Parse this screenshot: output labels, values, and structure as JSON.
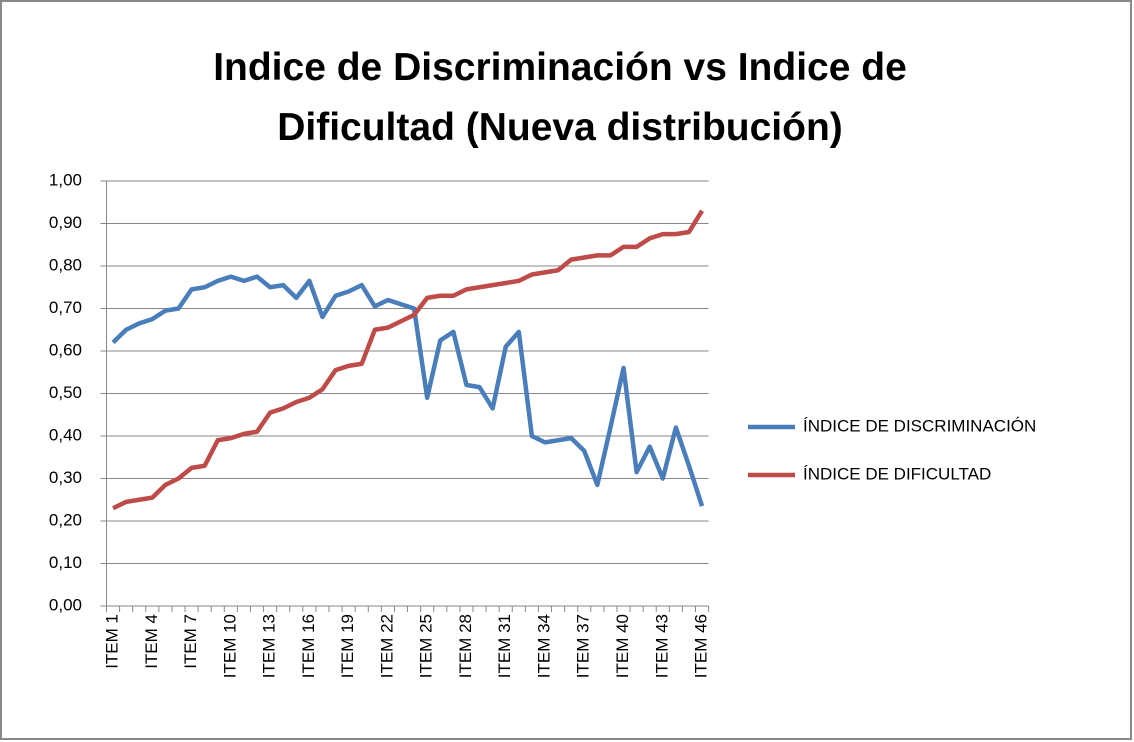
{
  "chart_data": {
    "type": "line",
    "title": "Indice de Discriminación vs Indice de Dificultad (Nueva distribución)",
    "categories": [
      "ITEM 1",
      null,
      null,
      "ITEM 4",
      null,
      null,
      "ITEM 7",
      null,
      null,
      "ITEM 10",
      null,
      null,
      "ITEM 13",
      null,
      null,
      "ITEM 16",
      null,
      null,
      "ITEM 19",
      null,
      null,
      "ITEM 22",
      null,
      null,
      "ITEM 25",
      null,
      null,
      "ITEM 28",
      null,
      null,
      "ITEM 31",
      null,
      null,
      "ITEM 34",
      null,
      null,
      "ITEM 37",
      null,
      null,
      "ITEM 40",
      null,
      null,
      "ITEM 43",
      null,
      null,
      "ITEM 46"
    ],
    "series": [
      {
        "name": "ÍNDICE DE DISCRIMINACIÓN",
        "color": "#4a7ebb",
        "values": [
          0.62,
          0.65,
          0.665,
          0.675,
          0.695,
          0.7,
          0.745,
          0.75,
          0.765,
          0.775,
          0.765,
          0.775,
          0.75,
          0.755,
          0.725,
          0.765,
          0.68,
          0.73,
          0.74,
          0.755,
          0.705,
          0.72,
          0.71,
          0.7,
          0.49,
          0.625,
          0.645,
          0.52,
          0.515,
          0.465,
          0.61,
          0.645,
          0.4,
          0.385,
          0.39,
          0.395,
          0.365,
          0.285,
          0.42,
          0.56,
          0.315,
          0.375,
          0.3,
          0.42,
          0.33,
          0.235
        ]
      },
      {
        "name": "ÍNDICE DE DIFICULTAD",
        "color": "#be4b48",
        "values": [
          0.23,
          0.245,
          0.25,
          0.255,
          0.285,
          0.3,
          0.325,
          0.33,
          0.39,
          0.395,
          0.405,
          0.41,
          0.455,
          0.465,
          0.48,
          0.49,
          0.51,
          0.555,
          0.565,
          0.57,
          0.65,
          0.655,
          0.67,
          0.685,
          0.725,
          0.73,
          0.73,
          0.745,
          0.75,
          0.755,
          0.76,
          0.765,
          0.78,
          0.785,
          0.79,
          0.815,
          0.82,
          0.825,
          0.825,
          0.845,
          0.845,
          0.865,
          0.875,
          0.875,
          0.88,
          0.93
        ]
      }
    ],
    "ylim": [
      0,
      1
    ],
    "yticks": [
      {
        "value": 0,
        "label": "0,00"
      },
      {
        "value": 0.1,
        "label": "0,10"
      },
      {
        "value": 0.2,
        "label": "0,20"
      },
      {
        "value": 0.3,
        "label": "0,30"
      },
      {
        "value": 0.4,
        "label": "0,40"
      },
      {
        "value": 0.5,
        "label": "0,50"
      },
      {
        "value": 0.6,
        "label": "0,60"
      },
      {
        "value": 0.7,
        "label": "0,70"
      },
      {
        "value": 0.8,
        "label": "0,80"
      },
      {
        "value": 0.9,
        "label": "0,90"
      },
      {
        "value": 1,
        "label": "1,00"
      }
    ],
    "grid": true,
    "legend": "right"
  }
}
